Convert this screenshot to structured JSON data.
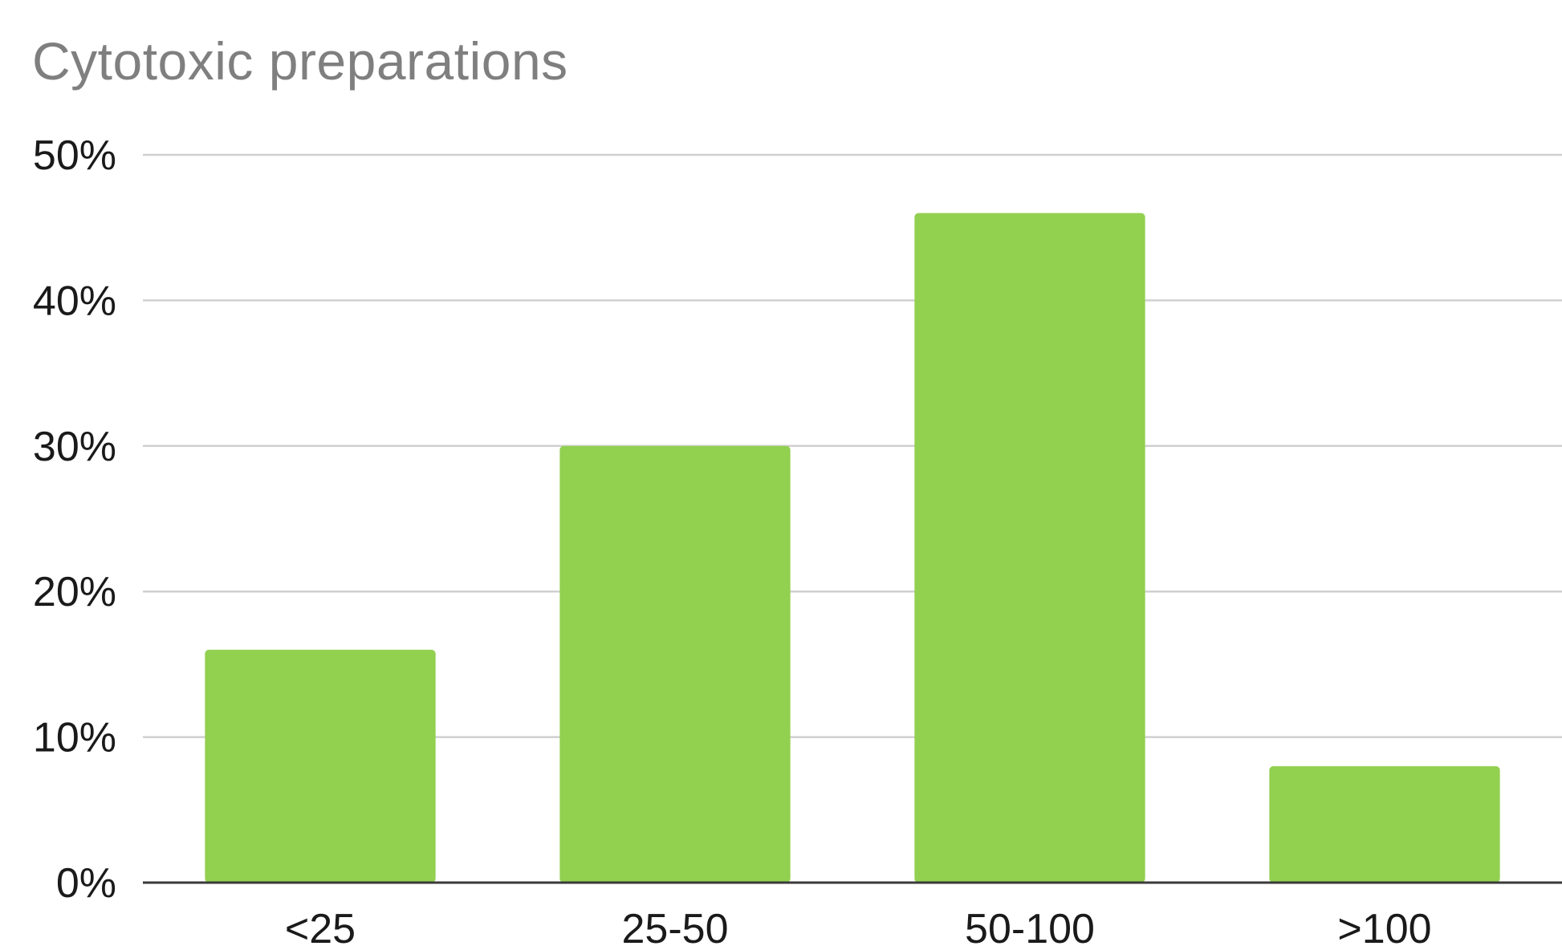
{
  "chart_data": {
    "type": "bar",
    "title": "Cytotoxic preparations",
    "categories": [
      "<25",
      "25-50",
      "50-100",
      ">100"
    ],
    "values": [
      16,
      30,
      46,
      8
    ],
    "xlabel": "",
    "ylabel": "",
    "ylim": [
      0,
      50
    ],
    "yticks": [
      0,
      10,
      20,
      30,
      40,
      50
    ],
    "ytick_format": "percent",
    "grid": true,
    "legend": "none",
    "colors": {
      "bar": "#92d050",
      "grid": "#d0d0d0",
      "axis": "#3a3a3a",
      "title": "#7f7f7f"
    }
  }
}
